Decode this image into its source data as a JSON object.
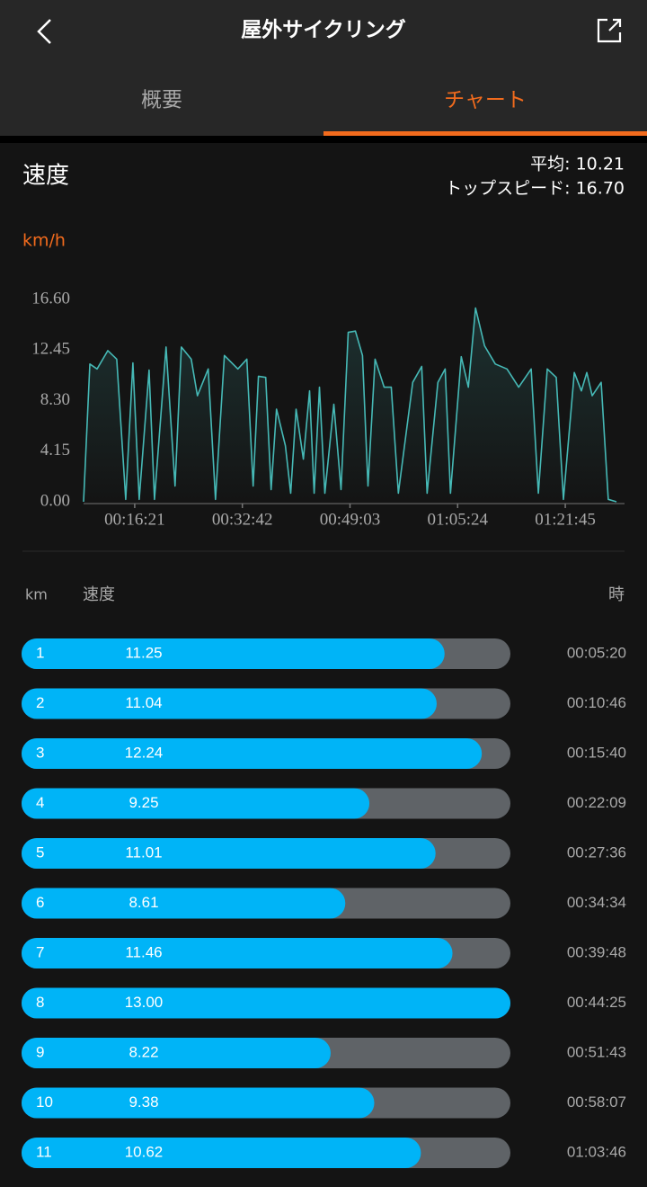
{
  "header": {
    "title": "屋外サイクリング"
  },
  "tabs": [
    "概要",
    "チャート"
  ],
  "section": {
    "title": "速度",
    "average": "平均: 10.21",
    "top_speed": "トップスピード: 16.70",
    "unit": "km/h"
  },
  "chart_data": {
    "type": "line",
    "color": "#46b9b6",
    "x": [
      515,
      572,
      638,
      736,
      817,
      899,
      965,
      1022,
      1112,
      1161,
      1267,
      1349,
      1406,
      1496,
      1553,
      1651,
      1717,
      1798,
      1921,
      2003,
      2060,
      2109,
      2175,
      2224,
      2273,
      2354,
      2403,
      2452,
      2518,
      2575,
      2616,
      2665,
      2714,
      2796,
      2861,
      2927,
      2992,
      3057,
      3107,
      3172,
      3254,
      3319,
      3384,
      3515,
      3597,
      3646,
      3744,
      3810,
      3859,
      3957,
      4022,
      4087,
      4169,
      4267,
      4374,
      4480,
      4594,
      4660,
      4741,
      4823,
      4888,
      4987,
      5052,
      5101,
      5150,
      5232,
      5297,
      5371
    ],
    "values": [
      0,
      11.3,
      10.9,
      12.4,
      11.7,
      0.2,
      11.4,
      0.2,
      10.8,
      0.2,
      12.7,
      1.3,
      12.7,
      11.7,
      8.7,
      10.9,
      0.2,
      12.0,
      10.9,
      11.7,
      1.3,
      10.3,
      10.2,
      1.0,
      7.6,
      4.6,
      0.7,
      7.6,
      3.5,
      9.1,
      0.7,
      9.4,
      0.7,
      8.0,
      1.0,
      13.9,
      14.0,
      12.0,
      1.3,
      11.7,
      9.4,
      9.4,
      0.7,
      9.8,
      11.1,
      0.7,
      9.8,
      10.9,
      0.7,
      11.9,
      9.4,
      15.9,
      12.8,
      11.3,
      10.9,
      9.4,
      10.9,
      0.7,
      10.9,
      10.2,
      0.2,
      10.6,
      9.1,
      10.6,
      8.7,
      9.8,
      0.2,
      0
    ],
    "xlim": [
      515,
      5445
    ],
    "xticks": [
      {
        "value": 981,
        "label": "00:16:21"
      },
      {
        "value": 1962,
        "label": "00:32:42"
      },
      {
        "value": 2943,
        "label": "00:49:03"
      },
      {
        "value": 3924,
        "label": "01:05:24"
      },
      {
        "value": 4905,
        "label": "01:21:45"
      }
    ],
    "ylim": [
      0,
      16.6
    ],
    "yticks": [
      {
        "value": 0,
        "label": "0.00"
      },
      4.15,
      {
        "value": 8.3,
        "label": "8.30"
      },
      12.45,
      {
        "value": 16.6,
        "label": "16.60"
      }
    ],
    "grid": false
  },
  "table": {
    "headers": [
      "km",
      "速度",
      "時"
    ],
    "km": [
      "1",
      "2",
      "3",
      "4",
      "5",
      "6",
      "7",
      "8",
      "9",
      "10",
      "11"
    ],
    "speeds": [
      11.25,
      11.04,
      12.24,
      9.25,
      11.01,
      8.61,
      11.46,
      13.0,
      8.22,
      9.38,
      10.62
    ],
    "speed_labels": [
      "11.25",
      "11.04",
      "12.24",
      "9.25",
      "11.01",
      "8.61",
      "11.46",
      "13.00",
      "8.22",
      "9.38",
      "10.62"
    ],
    "times": [
      "00:05:20",
      "00:10:46",
      "00:15:40",
      "00:22:09",
      "00:27:36",
      "00:34:34",
      "00:39:48",
      "00:44:25",
      "00:51:43",
      "00:58:07",
      "01:03:46"
    ]
  }
}
